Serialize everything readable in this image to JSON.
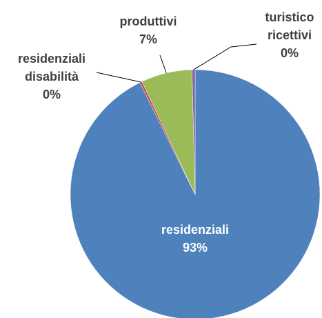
{
  "chart_data": {
    "type": "pie",
    "categories": [
      "residenziali",
      "residenziali disabilità",
      "produttivi",
      "turistico ricettivi"
    ],
    "values": [
      92.7,
      0.3,
      6.6,
      0.4
    ],
    "value_labels": [
      "93%",
      "0%",
      "7%",
      "0%"
    ],
    "colors": [
      "#4f81bd",
      "#c0504d",
      "#9bbb59",
      "#8064a2"
    ]
  }
}
